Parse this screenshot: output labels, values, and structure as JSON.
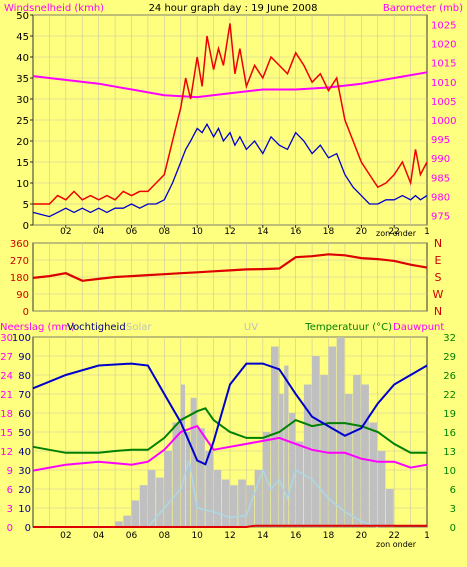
{
  "chart_data": [
    {
      "type": "line",
      "title": "24 hour graph day : 19 June 2008",
      "ylabel": "Windsnelheid (kmh)",
      "y2label": "Barometer (mb)",
      "xlabel": "zon onder",
      "ylim": [
        0,
        50
      ],
      "y2lim": [
        972.5,
        1027.5
      ],
      "yticks": [
        "0",
        "5",
        "10",
        "15",
        "20",
        "25",
        "30",
        "35",
        "40",
        "45",
        "50"
      ],
      "y2ticks": [
        "975",
        "980",
        "985",
        "990",
        "995",
        "1000",
        "1005",
        "1010",
        "1015",
        "1020",
        "1025"
      ],
      "xticks": [
        "02",
        "04",
        "06",
        "08",
        "10",
        "12",
        "14",
        "16",
        "18",
        "20",
        "22"
      ],
      "x_end_tick": "1",
      "colors": {
        "gust": "#ee0000",
        "average": "#0000cc",
        "barometer": "#ff00ff",
        "axis_left": "#ff00ff",
        "axis_right": "#ff00ff"
      },
      "series": [
        {
          "key": "gust",
          "x": [
            0,
            1,
            1.5,
            2,
            2.5,
            3,
            3.5,
            4,
            4.5,
            5,
            5.5,
            6,
            6.5,
            7,
            7.5,
            8,
            8.5,
            9,
            9.3,
            9.6,
            10,
            10.3,
            10.6,
            11,
            11.3,
            11.6,
            12,
            12.3,
            12.6,
            13,
            13.5,
            14,
            14.5,
            15,
            15.5,
            16,
            16.5,
            17,
            17.5,
            18,
            18.5,
            19,
            19.5,
            20,
            20.5,
            21,
            21.5,
            22,
            22.5,
            23,
            23.3,
            23.6,
            24
          ],
          "values": [
            5,
            5,
            7,
            6,
            8,
            6,
            7,
            6,
            7,
            6,
            8,
            7,
            8,
            8,
            10,
            12,
            20,
            28,
            35,
            30,
            40,
            33,
            45,
            37,
            42,
            38,
            48,
            36,
            42,
            33,
            38,
            35,
            40,
            38,
            36,
            41,
            38,
            34,
            36,
            32,
            35,
            25,
            20,
            15,
            12,
            9,
            10,
            12,
            15,
            10,
            18,
            12,
            15
          ]
        },
        {
          "key": "average",
          "x": [
            0,
            1,
            1.5,
            2,
            2.5,
            3,
            3.5,
            4,
            4.5,
            5,
            5.5,
            6,
            6.5,
            7,
            7.5,
            8,
            8.5,
            9,
            9.3,
            9.6,
            10,
            10.3,
            10.6,
            11,
            11.3,
            11.6,
            12,
            12.3,
            12.6,
            13,
            13.5,
            14,
            14.5,
            15,
            15.5,
            16,
            16.5,
            17,
            17.5,
            18,
            18.5,
            19,
            19.5,
            20,
            20.5,
            21,
            21.5,
            22,
            22.5,
            23,
            23.3,
            23.6,
            24
          ],
          "values": [
            3,
            2,
            3,
            4,
            3,
            4,
            3,
            4,
            3,
            4,
            4,
            5,
            4,
            5,
            5,
            6,
            10,
            15,
            18,
            20,
            23,
            22,
            24,
            21,
            23,
            20,
            22,
            19,
            21,
            18,
            20,
            17,
            21,
            19,
            18,
            22,
            20,
            17,
            19,
            16,
            17,
            12,
            9,
            7,
            5,
            5,
            6,
            6,
            7,
            6,
            7,
            6,
            7
          ]
        },
        {
          "key": "barometer",
          "x": [
            0,
            4,
            8,
            10,
            12,
            14,
            16,
            18,
            20,
            22,
            24
          ],
          "values": [
            1011.5,
            1009.5,
            1006.5,
            1006,
            1007,
            1008,
            1008,
            1008.5,
            1009.5,
            1011,
            1012.5
          ]
        }
      ]
    },
    {
      "type": "line",
      "ylabel": "",
      "ylim": [
        0,
        360
      ],
      "yticks": [
        "0",
        "90",
        "180",
        "270",
        "360"
      ],
      "right_labels": [
        "N",
        "W",
        "S",
        "E",
        "N"
      ],
      "xlabel": "zon onder",
      "xticks": [
        "02",
        "04",
        "06",
        "08",
        "10",
        "12",
        "14",
        "16",
        "18",
        "20",
        "22"
      ],
      "x_end_tick": "1",
      "colors": {
        "direction": "#dd0000",
        "axis": "#cc0000"
      },
      "series": [
        {
          "key": "direction",
          "x": [
            0,
            1,
            2,
            3,
            4,
            5,
            6,
            7,
            8,
            9,
            10,
            11,
            12,
            13,
            14,
            15,
            16,
            17,
            18,
            19,
            20,
            21,
            22,
            23,
            24
          ],
          "values": [
            175,
            185,
            200,
            160,
            170,
            180,
            185,
            190,
            195,
            200,
            205,
            210,
            215,
            220,
            222,
            225,
            285,
            290,
            300,
            295,
            280,
            275,
            265,
            245,
            230
          ]
        }
      ]
    },
    {
      "type": "area",
      "labels": {
        "rain": "Neerslag (mm)",
        "humidity": "Vochtigheid",
        "solar": "Solar",
        "uv": "UV",
        "temperature": "Temperatuur (°C)",
        "dewpoint": "Dauwpunt"
      },
      "ylim_humidity": [
        0,
        100
      ],
      "ylim_rain": [
        0,
        30
      ],
      "ylim_temp": [
        0,
        32
      ],
      "humidity_ticks": [
        "0",
        "10",
        "20",
        "30",
        "40",
        "50",
        "60",
        "70",
        "80",
        "90",
        "100"
      ],
      "rain_ticks": [
        "0",
        "3",
        "6",
        "9",
        "12",
        "15",
        "18",
        "21",
        "24",
        "27",
        "30"
      ],
      "temp_ticks": [
        "0",
        "3",
        "6",
        "10",
        "13",
        "16",
        "19",
        "22",
        "26",
        "29",
        "32"
      ],
      "xlabel": "zon onder",
      "xticks": [
        "02",
        "04",
        "06",
        "08",
        "10",
        "12",
        "14",
        "16",
        "18",
        "20",
        "22"
      ],
      "x_end_tick": "1",
      "colors": {
        "humidity": "#0000cc",
        "temperature": "#008000",
        "dewpoint": "#ff00ff",
        "rain": "#dd0000",
        "solar": "#c0c0c0",
        "uv": "#add8e6",
        "rain_axis": "#ff00ff",
        "humidity_axis": "#000080",
        "solar_label": "#c0c0c0",
        "uv_label": "#c0c0c0",
        "temp_axis": "#008000"
      },
      "series": [
        {
          "key": "humidity",
          "x": [
            0,
            2,
            4,
            6,
            7,
            8,
            9,
            10,
            10.5,
            11,
            12,
            13,
            14,
            15,
            16,
            17,
            18,
            19,
            20,
            21,
            22,
            23,
            24
          ],
          "values": [
            73,
            80,
            85,
            86,
            85,
            70,
            55,
            35,
            33,
            45,
            75,
            86,
            86,
            83,
            70,
            58,
            53,
            48,
            52,
            65,
            75,
            80,
            85
          ]
        },
        {
          "key": "temperature",
          "x": [
            0,
            2,
            4,
            5,
            6,
            7,
            8,
            9,
            10,
            10.5,
            11,
            12,
            13,
            14,
            15,
            16,
            17,
            18,
            19,
            20,
            21,
            22,
            23,
            24
          ],
          "values": [
            13.5,
            12.5,
            12.5,
            12.8,
            13,
            13,
            15,
            18,
            19.5,
            20,
            18,
            16,
            15,
            15,
            16,
            18,
            17,
            17.5,
            17.5,
            17,
            16,
            14,
            12.5,
            12.5
          ]
        },
        {
          "key": "dewpoint",
          "x": [
            0,
            2,
            4,
            6,
            7,
            8,
            9,
            10,
            11,
            12,
            13,
            14,
            15,
            16,
            17,
            18,
            19,
            20,
            21,
            22,
            23,
            24
          ],
          "values": [
            9.5,
            10.5,
            11,
            10.5,
            11,
            13,
            16,
            17,
            13,
            13.5,
            14,
            14.5,
            15,
            14,
            13,
            12.5,
            12.5,
            11.5,
            11,
            11,
            10,
            10.5
          ]
        },
        {
          "key": "rain",
          "x": [
            0,
            13,
            13.5,
            24
          ],
          "values": [
            0,
            0,
            0.2,
            0.2
          ]
        },
        {
          "key": "solar",
          "x": [
            0,
            4.5,
            5,
            5.5,
            6,
            6.5,
            7,
            7.5,
            8,
            8.5,
            9,
            9.3,
            9.6,
            10,
            10.5,
            11,
            11.5,
            12,
            12.5,
            13,
            13.5,
            14,
            14.5,
            15,
            15.3,
            15.6,
            16,
            16.5,
            17,
            17.5,
            18,
            18.5,
            19,
            19.5,
            20,
            20.5,
            21,
            21.5,
            22
          ],
          "values": [
            0,
            0,
            3,
            6,
            14,
            22,
            30,
            26,
            40,
            55,
            75,
            50,
            68,
            52,
            40,
            30,
            25,
            22,
            25,
            22,
            30,
            50,
            95,
            70,
            85,
            60,
            45,
            75,
            90,
            80,
            95,
            100,
            70,
            80,
            75,
            55,
            40,
            20,
            0
          ]
        },
        {
          "key": "uv",
          "x": [
            0,
            7,
            8,
            9,
            9.5,
            10,
            11,
            12,
            13,
            14,
            14.5,
            15,
            15.5,
            16,
            17,
            18,
            19,
            20,
            21
          ],
          "values": [
            0,
            0,
            10,
            20,
            35,
            10,
            8,
            5,
            6,
            30,
            20,
            25,
            15,
            30,
            25,
            15,
            8,
            3,
            0
          ]
        }
      ]
    }
  ]
}
